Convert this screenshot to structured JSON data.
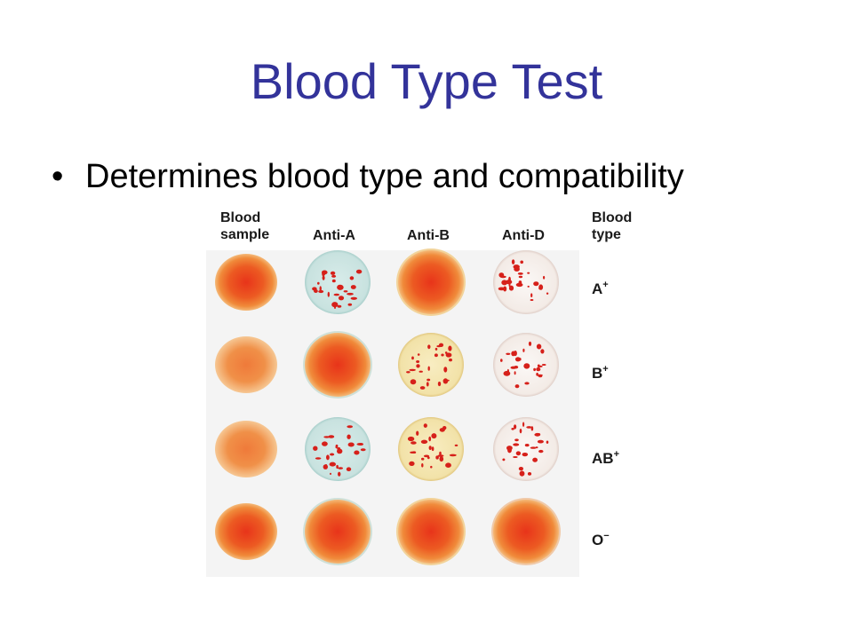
{
  "slide": {
    "title": "Blood Type Test",
    "bullet_symbol": "•",
    "bullets": [
      "Determines blood type and compatibility"
    ]
  },
  "figure": {
    "columns": [
      {
        "line1": "Blood",
        "line2": "sample"
      },
      {
        "line1": "Anti-A",
        "line2": ""
      },
      {
        "line1": "Anti-B",
        "line2": ""
      },
      {
        "line1": "Anti-D",
        "line2": ""
      },
      {
        "line1": "Blood",
        "line2": "type"
      }
    ],
    "rows": [
      {
        "type": "A",
        "rh": "+",
        "wells": [
          "uniform",
          "agglutinated",
          "uniform",
          "agglutinated"
        ]
      },
      {
        "type": "B",
        "rh": "+",
        "wells": [
          "uniform",
          "uniform",
          "agglutinated",
          "agglutinated"
        ]
      },
      {
        "type": "AB",
        "rh": "+",
        "wells": [
          "uniform",
          "agglutinated",
          "agglutinated",
          "agglutinated"
        ]
      },
      {
        "type": "O",
        "rh": "−",
        "wells": [
          "uniform",
          "uniform",
          "uniform",
          "uniform"
        ]
      }
    ],
    "colors": {
      "title": "#33339a",
      "blood": "#e8401c",
      "anti_a_reagent": "#cfe6e3",
      "anti_b_reagent": "#f4e7b4",
      "anti_d_reagent": "#f6f1ee",
      "clump": "#d6201a"
    }
  }
}
